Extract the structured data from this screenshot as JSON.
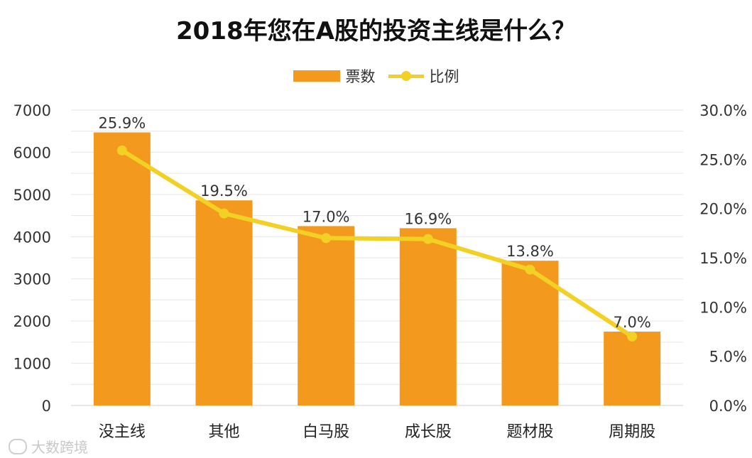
{
  "chart_data": {
    "type": "bar",
    "title": "2018年您在A股的投资主线是什么？",
    "categories": [
      "没主线",
      "其他",
      "白马股",
      "成长股",
      "题材股",
      "周期股"
    ],
    "series": [
      {
        "name": "票数",
        "type": "bar",
        "axis": "left",
        "color": "#F39A1E",
        "values": [
          6470,
          4860,
          4250,
          4200,
          3430,
          1750
        ]
      },
      {
        "name": "比例",
        "type": "line",
        "axis": "right",
        "color": "#F2D024",
        "values": [
          25.9,
          19.5,
          17.0,
          16.9,
          13.8,
          7.0
        ],
        "labels": [
          "25.9%",
          "19.5%",
          "17.0%",
          "16.9%",
          "13.8%",
          "7.0%"
        ]
      }
    ],
    "y_left": {
      "min": 0,
      "max": 7000,
      "ticks": [
        "0",
        "1000",
        "2000",
        "3000",
        "4000",
        "5000",
        "6000",
        "7000"
      ]
    },
    "y_right": {
      "min": 0,
      "max": 30,
      "ticks": [
        "0.0%",
        "5.0%",
        "10.0%",
        "15.0%",
        "20.0%",
        "25.0%",
        "30.0%"
      ]
    },
    "legend_position": "top-center",
    "grid": true
  },
  "watermark": {
    "text": "大数跨境"
  }
}
